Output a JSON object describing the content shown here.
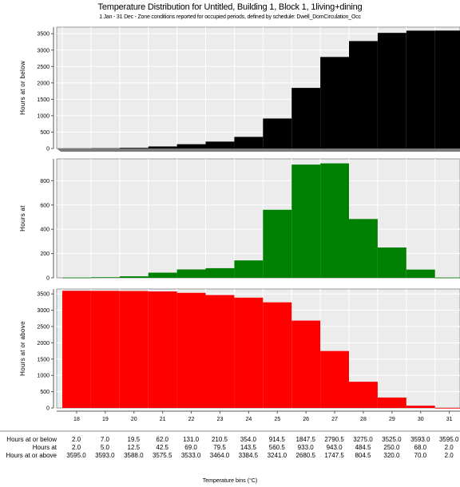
{
  "title": "Temperature Distribution for Untitled, Building 1, Block 1, 1living+dining",
  "subtitle": "1 Jan - 31 Dec - Zone conditions reported for occupied periods, defined by schedule: Dwell_DomCirculation_Occ",
  "x_axis_title": "Temperature bins (°C)",
  "chart_data": [
    {
      "type": "bar",
      "name": "cumulative-below",
      "ylabel": "Hours at or below",
      "color": "#000000",
      "categories": [
        "18",
        "19",
        "20",
        "21",
        "22",
        "23",
        "24",
        "25",
        "26",
        "27",
        "28",
        "29",
        "30",
        "31"
      ],
      "values": [
        2.0,
        7.0,
        19.5,
        62.0,
        131.0,
        210.5,
        354.0,
        914.5,
        1847.5,
        2790.5,
        3275.0,
        3525.0,
        3593.0,
        3595.0
      ],
      "ylim": [
        0,
        3700
      ],
      "yticks": [
        0,
        500,
        1000,
        1500,
        2000,
        2500,
        3000,
        3500
      ],
      "grid": true
    },
    {
      "type": "bar",
      "name": "hours-at",
      "ylabel": "Hours at",
      "color": "#008000",
      "categories": [
        "18",
        "19",
        "20",
        "21",
        "22",
        "23",
        "24",
        "25",
        "26",
        "27",
        "28",
        "29",
        "30",
        "31"
      ],
      "values": [
        2.0,
        5.0,
        12.5,
        42.5,
        69.0,
        79.5,
        143.5,
        560.5,
        933.0,
        943.0,
        484.5,
        250.0,
        68.0,
        2.0
      ],
      "ylim": [
        0,
        980
      ],
      "yticks": [
        0,
        200,
        400,
        600,
        800
      ],
      "grid": true
    },
    {
      "type": "bar",
      "name": "cumulative-above",
      "ylabel": "Hours at or above",
      "color": "#ff0000",
      "categories": [
        "18",
        "19",
        "20",
        "21",
        "22",
        "23",
        "24",
        "25",
        "26",
        "27",
        "28",
        "29",
        "30",
        "31"
      ],
      "values": [
        3595.0,
        3593.0,
        3588.0,
        3575.5,
        3533.0,
        3464.0,
        3384.5,
        3241.0,
        2680.5,
        1747.5,
        804.5,
        320.0,
        70.0,
        2.0
      ],
      "ylim": [
        0,
        3650
      ],
      "yticks": [
        0,
        500,
        1000,
        1500,
        2000,
        2500,
        3000,
        3500
      ],
      "grid": true
    }
  ],
  "table": {
    "rows": [
      {
        "label": "Hours at or below",
        "values": [
          "2.0",
          "7.0",
          "19.5",
          "62.0",
          "131.0",
          "210.5",
          "354.0",
          "914.5",
          "1847.5",
          "2790.5",
          "3275.0",
          "3525.0",
          "3593.0",
          "3595.0"
        ]
      },
      {
        "label": "Hours at",
        "values": [
          "2.0",
          "5.0",
          "12.5",
          "42.5",
          "69.0",
          "79.5",
          "143.5",
          "560.5",
          "933.0",
          "943.0",
          "484.5",
          "250.0",
          "68.0",
          "2.0"
        ]
      },
      {
        "label": "Hours at or above",
        "values": [
          "3595.0",
          "3593.0",
          "3588.0",
          "3575.5",
          "3533.0",
          "3464.0",
          "3384.5",
          "3241.0",
          "2680.5",
          "1747.5",
          "804.5",
          "320.0",
          "70.0",
          "2.0"
        ]
      }
    ]
  }
}
